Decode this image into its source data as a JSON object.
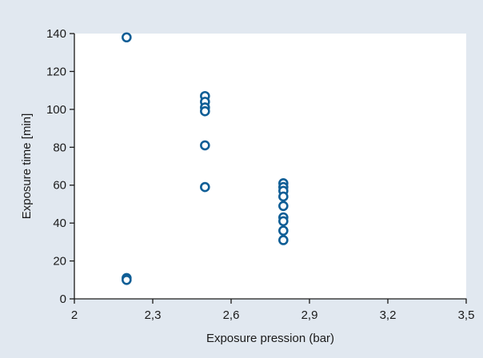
{
  "chart_data": {
    "type": "scatter",
    "title": "",
    "xlabel": "Exposure pression (bar)",
    "ylabel": "Exposure time [min]",
    "xlim": [
      2,
      3.5
    ],
    "ylim": [
      0,
      140
    ],
    "x_ticks": [
      2,
      2.3,
      2.6,
      2.9,
      3.2,
      3.5
    ],
    "x_tick_labels": [
      "2",
      "2,3",
      "2,6",
      "2,9",
      "3,2",
      "3,5"
    ],
    "y_ticks": [
      0,
      20,
      40,
      60,
      80,
      100,
      120,
      140
    ],
    "y_tick_labels": [
      "0",
      "20",
      "40",
      "60",
      "80",
      "100",
      "120",
      "140"
    ],
    "grid": false,
    "legend": "none",
    "colors": {
      "background": "#e1e8f0",
      "plot_area": "#ffffff",
      "marker": "#0f5e96",
      "axis": "#1a1a1a"
    },
    "series": [
      {
        "points": [
          [
            2.2,
            138
          ],
          [
            2.2,
            11
          ],
          [
            2.2,
            10
          ],
          [
            2.5,
            107
          ],
          [
            2.5,
            104
          ],
          [
            2.5,
            101
          ],
          [
            2.5,
            99
          ],
          [
            2.5,
            81
          ],
          [
            2.5,
            59
          ],
          [
            2.8,
            61
          ],
          [
            2.8,
            59
          ],
          [
            2.8,
            57
          ],
          [
            2.8,
            54
          ],
          [
            2.8,
            49
          ],
          [
            2.8,
            43
          ],
          [
            2.8,
            41
          ],
          [
            2.8,
            36
          ],
          [
            2.8,
            31
          ]
        ]
      }
    ]
  }
}
